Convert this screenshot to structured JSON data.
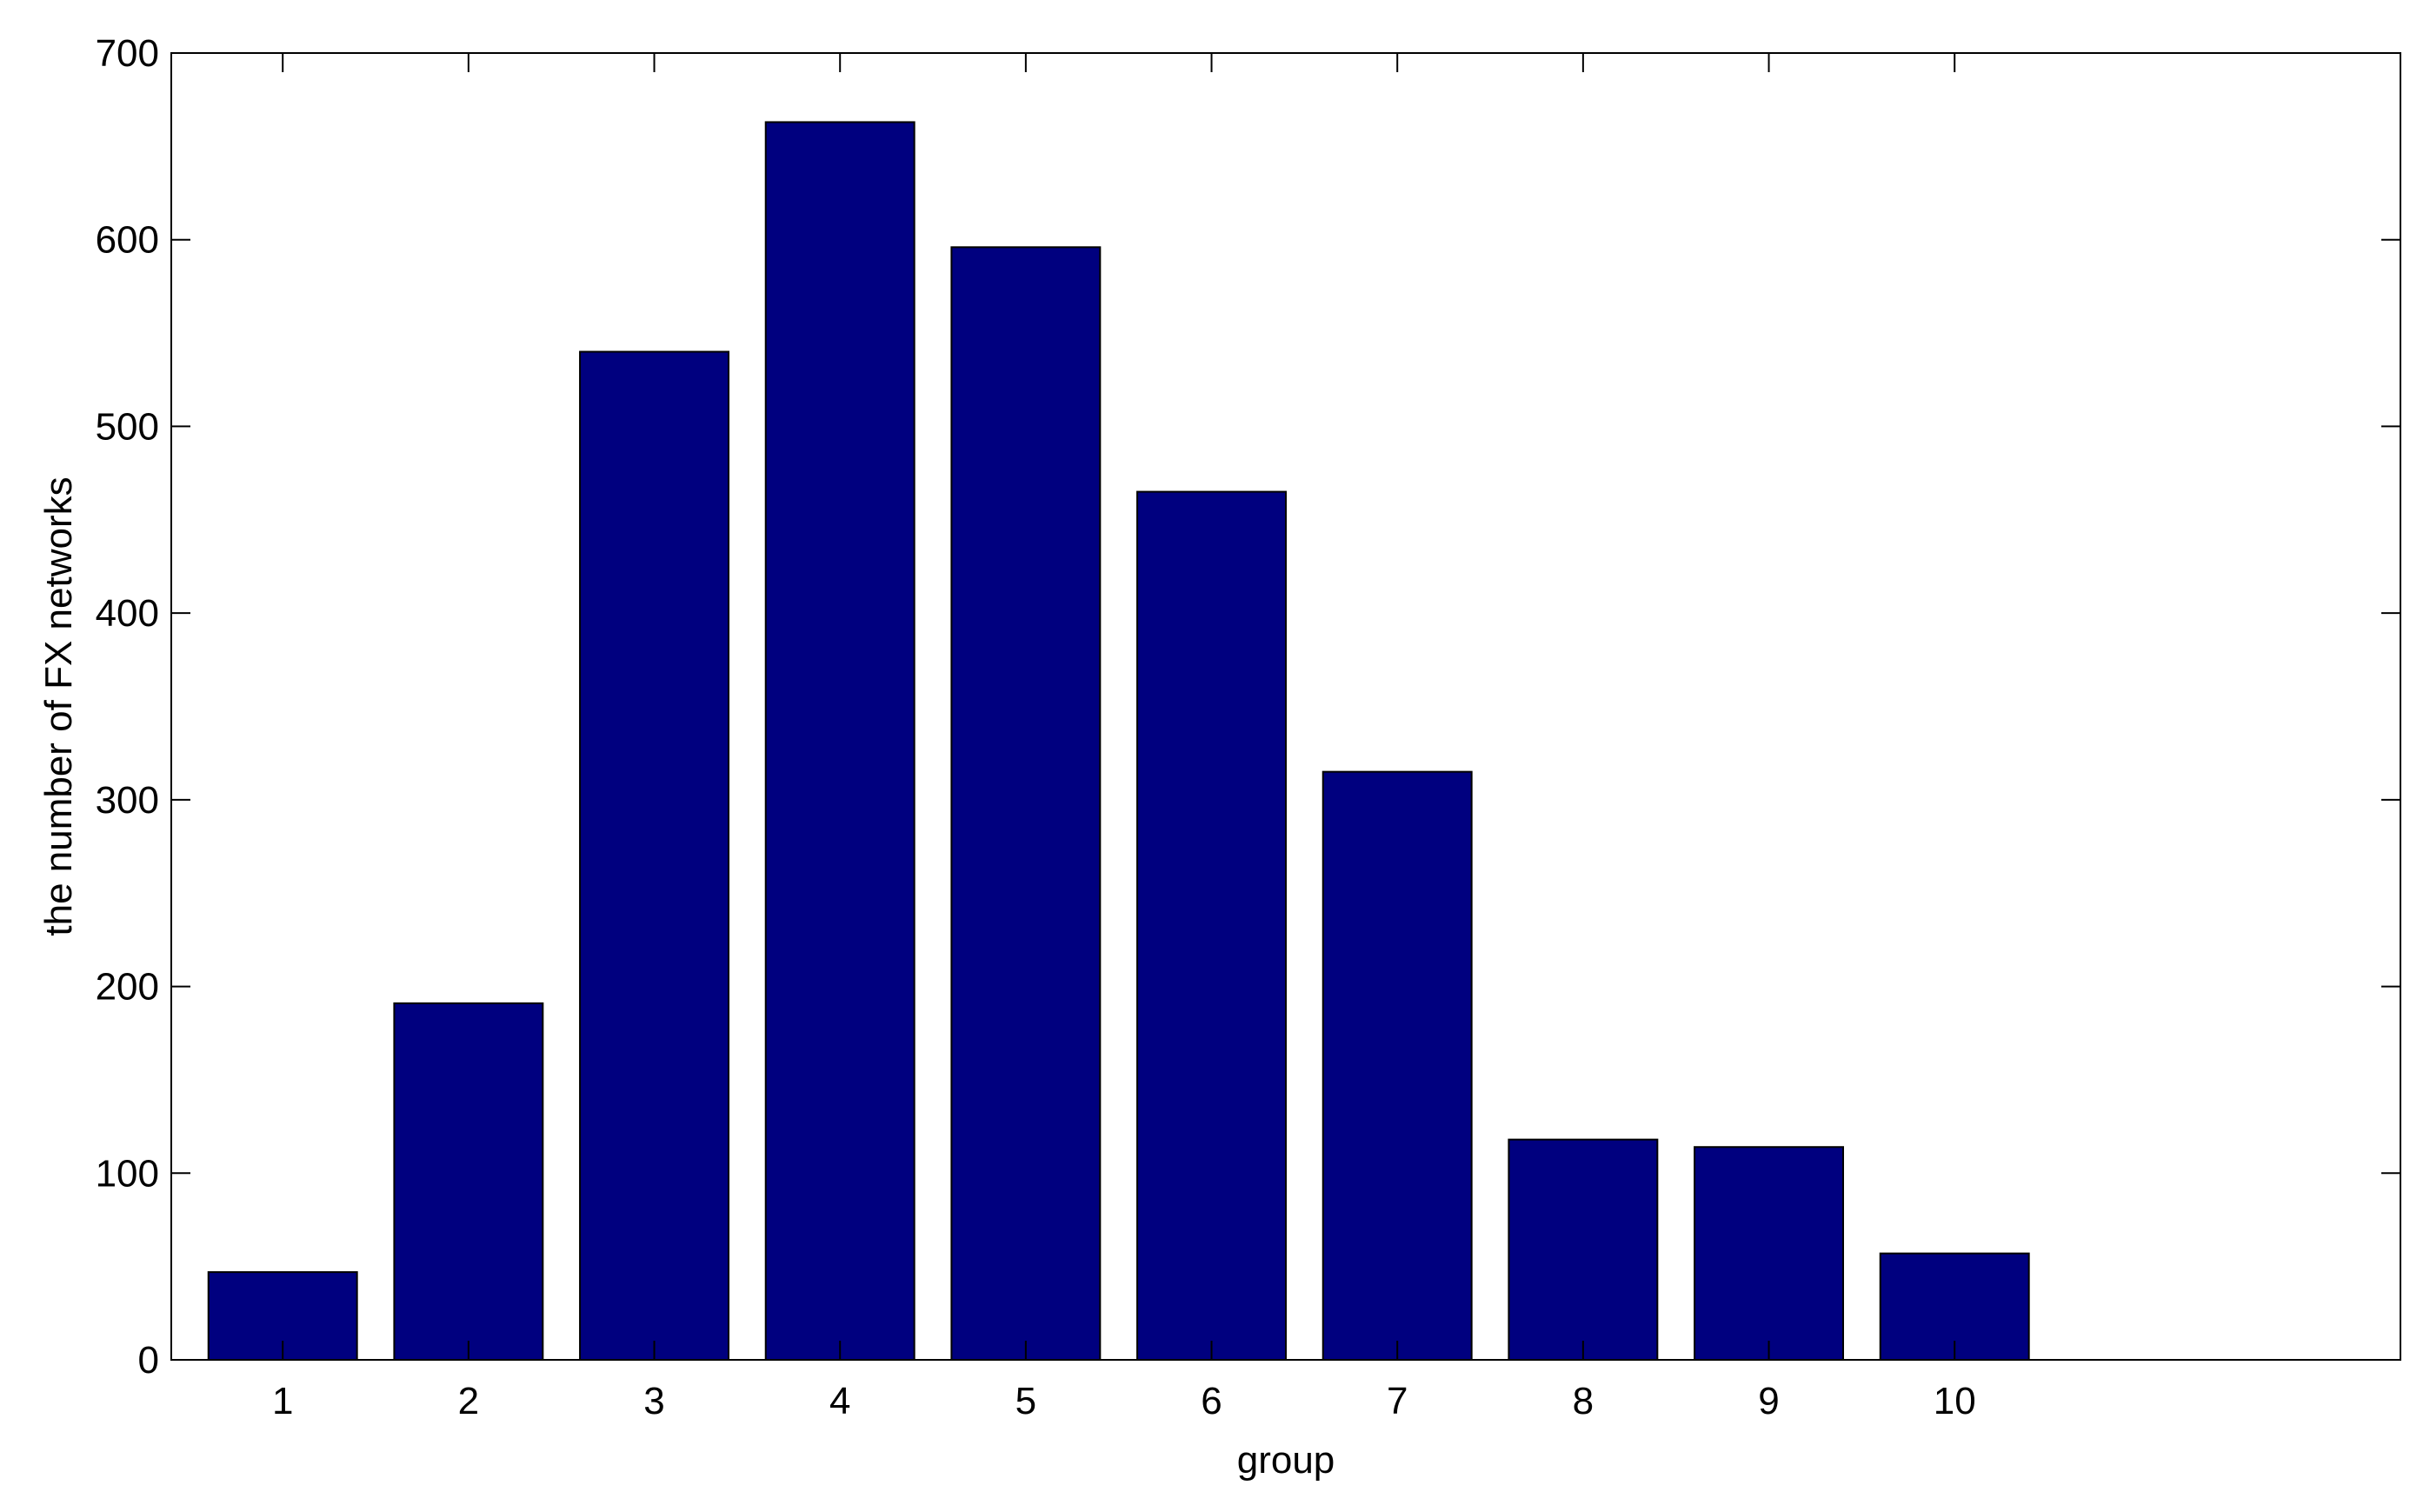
{
  "chart_data": {
    "type": "bar",
    "title": "",
    "xlabel": "group",
    "ylabel": "the number of FX networks",
    "categories": [
      "1",
      "2",
      "3",
      "4",
      "5",
      "6",
      "7",
      "8",
      "9",
      "10"
    ],
    "values": [
      47,
      191,
      540,
      663,
      596,
      465,
      315,
      118,
      114,
      57
    ],
    "xlim": [
      0.4,
      12.4
    ],
    "ylim": [
      0,
      700
    ],
    "yticks": [
      "0",
      "100",
      "200",
      "300",
      "400",
      "500",
      "600",
      "700"
    ],
    "bar_color": "#00007f",
    "grid": false,
    "legend": "none"
  }
}
